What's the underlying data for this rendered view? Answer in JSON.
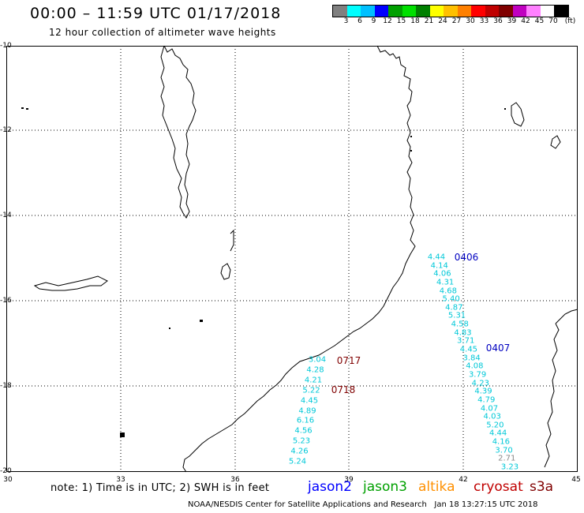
{
  "title": "00:00 – 11:59 UTC 01/17/2018",
  "subtitle": "12 hour collection of altimeter wave heights",
  "colorbar": {
    "unit": "(ft)",
    "swatches": [
      "#808080",
      "#00ffff",
      "#00c0ff",
      "#0000ff",
      "#00a000",
      "#00e000",
      "#008000",
      "#ffff00",
      "#ffc000",
      "#ff8000",
      "#ff0000",
      "#c00000",
      "#800000",
      "#c000c0",
      "#ff80ff",
      "#ffffff",
      "#000000"
    ],
    "labels": [
      "3",
      "6",
      "9",
      "12",
      "15",
      "18",
      "21",
      "24",
      "27",
      "30",
      "33",
      "36",
      "39",
      "42",
      "45",
      "70"
    ]
  },
  "map": {
    "lon_range": [
      30,
      45
    ],
    "lat_range": [
      -20,
      -10
    ],
    "lat_ticks": [
      "-10",
      "-12",
      "-14",
      "-16",
      "-18",
      "-20"
    ],
    "lon_ticks": [
      "30",
      "33",
      "36",
      "39",
      "42",
      "45"
    ]
  },
  "passes": [
    {
      "id": "0406",
      "color": "#0000c0"
    },
    {
      "id": "0407",
      "color": "#0000c0"
    },
    {
      "id": "0717",
      "color": "#800000"
    },
    {
      "id": "0718",
      "color": "#800000"
    }
  ],
  "tracks": {
    "east": [
      "4.44",
      "4.14",
      "4.06",
      "4.31",
      "4.68",
      "5.40",
      "4.87",
      "5.31",
      "4.58",
      "4.83",
      "3.71",
      "4.45",
      "3.84",
      "4.08",
      "3.79",
      "4.23",
      "4.39",
      "4.79",
      "4.07",
      "4.03",
      "5.20",
      "4.44",
      "4.16",
      "3.70",
      "2.71",
      "3.23"
    ],
    "west": [
      "3.04",
      "4.28",
      "4.21",
      "5.22",
      "4.45",
      "4.89",
      "6.16",
      "4.56",
      "5.23",
      "4.26",
      "5.24"
    ]
  },
  "note": "note: 1) Time is in UTC; 2) SWH is in feet",
  "legend": [
    {
      "name": "jason2",
      "color": "#0000ff"
    },
    {
      "name": "jason3",
      "color": "#00a000"
    },
    {
      "name": "altika",
      "color": "#ff9000"
    },
    {
      "name": "cryosat",
      "color": "#c00000"
    },
    {
      "name": "s3a",
      "color": "#800000"
    }
  ],
  "footer": {
    "credit": "NOAA/NESDIS Center for Satellite Applications and Research",
    "timestamp": "Jan 18 13:27:15 UTC 2018"
  }
}
